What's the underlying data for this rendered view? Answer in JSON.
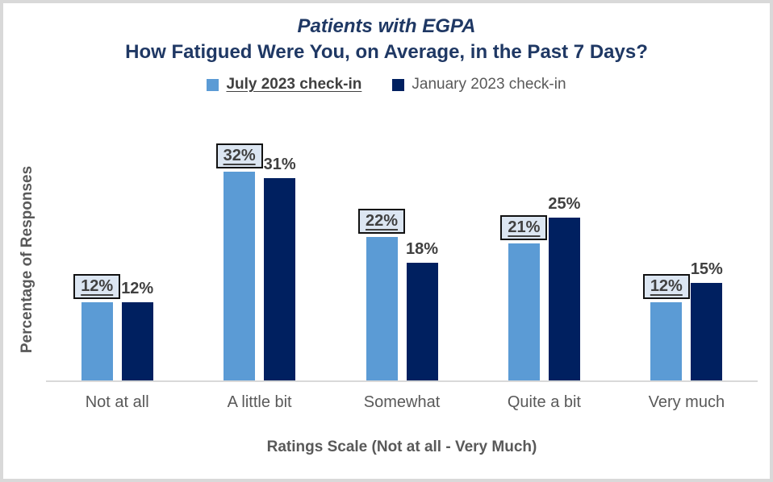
{
  "chart_data": {
    "type": "bar",
    "title": "Patients with EGPA",
    "subtitle": "How Fatigued Were You, on Average, in the Past 7 Days?",
    "title_color": "#1F3864",
    "categories": [
      "Not at all",
      "A little bit",
      "Somewhat",
      "Quite a bit",
      "Very much"
    ],
    "series": [
      {
        "name": "July 2023 check-in",
        "values": [
          12,
          32,
          22,
          21,
          12
        ],
        "color": "#5B9BD5",
        "label_style": "boxed-underlined",
        "label_box_fill": "#DCE6F2",
        "label_box_border": "#111111"
      },
      {
        "name": "January 2023 check-in",
        "values": [
          12,
          31,
          18,
          25,
          15
        ],
        "color": "#002060",
        "label_style": "plain"
      }
    ],
    "value_suffix": "%",
    "xlabel": "Ratings Scale (Not at all - Very Much)",
    "ylabel": "Percentage of Responses",
    "ylim": [
      0,
      35
    ],
    "gridlines": false,
    "legend_position": "top-center",
    "axis_line_color": "#D9D9D9",
    "data_label_color": "#404040",
    "tick_label_color": "#595959",
    "frame_border_color": "#D9D9D9"
  }
}
